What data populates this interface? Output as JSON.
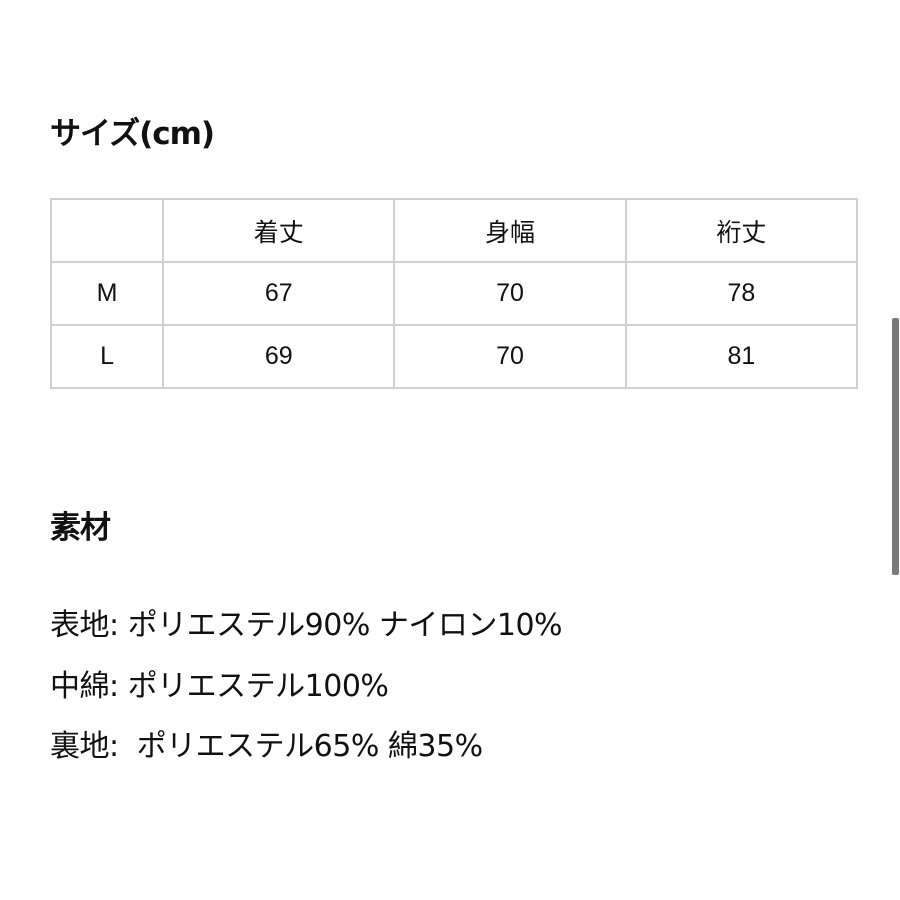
{
  "size_section": {
    "title": "サイズ(cm)",
    "headers": [
      "",
      "着丈",
      "身幅",
      "裄丈"
    ],
    "rows": [
      [
        "M",
        "67",
        "70",
        "78"
      ],
      [
        "L",
        "69",
        "70",
        "81"
      ]
    ]
  },
  "material_section": {
    "title": "素材",
    "lines": [
      "表地: ポリエステル90% ナイロン10%",
      "中綿: ポリエステル100%",
      "裏地:  ポリエステル65% 綿35%"
    ]
  }
}
